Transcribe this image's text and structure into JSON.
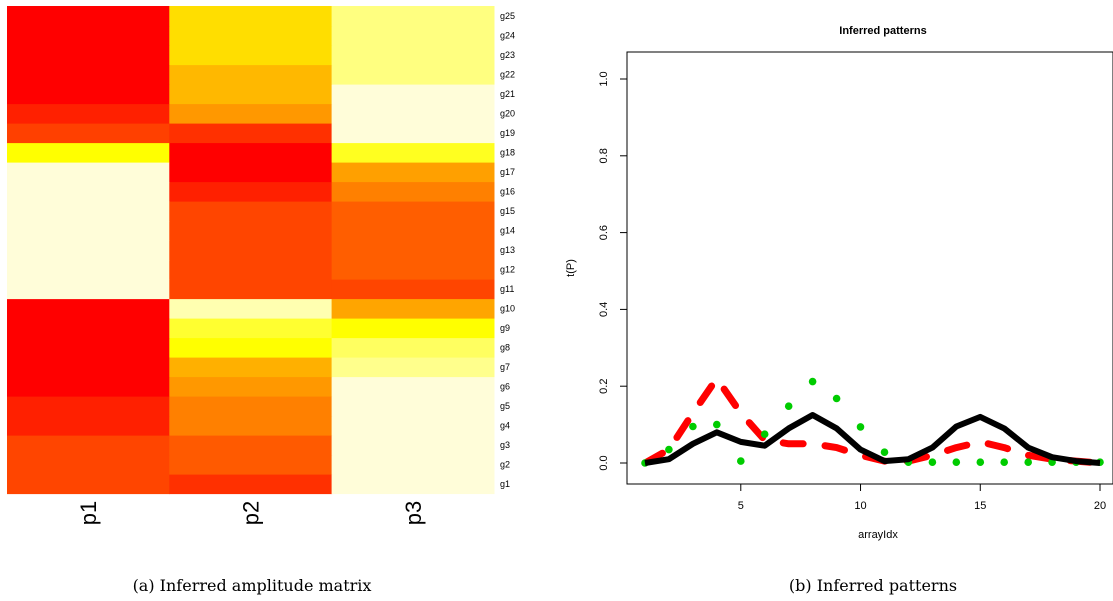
{
  "chart_data": [
    {
      "type": "heatmap",
      "caption": "(a) Inferred amplitude matrix",
      "columns": [
        "p1",
        "p2",
        "p3"
      ],
      "rows": [
        "g1",
        "g2",
        "g3",
        "g4",
        "g5",
        "g6",
        "g7",
        "g8",
        "g9",
        "g10",
        "g11",
        "g12",
        "g13",
        "g14",
        "g15",
        "g16",
        "g17",
        "g18",
        "g19",
        "g20",
        "g21",
        "g22",
        "g23",
        "g24",
        "g25"
      ],
      "colors": [
        [
          "#ff4500",
          "#ff3000",
          "#fffdd9"
        ],
        [
          "#ff4500",
          "#ff5a00",
          "#fffdd9"
        ],
        [
          "#ff4500",
          "#ff5a00",
          "#fffdd9"
        ],
        [
          "#ff2000",
          "#ff8000",
          "#fffdd9"
        ],
        [
          "#ff2000",
          "#ff8000",
          "#fffdd9"
        ],
        [
          "#ff0000",
          "#ff9800",
          "#fffdd9"
        ],
        [
          "#ff0000",
          "#ffb000",
          "#ffff8c"
        ],
        [
          "#ff0000",
          "#ffff00",
          "#ffff60"
        ],
        [
          "#ff0000",
          "#ffff30",
          "#ffff00"
        ],
        [
          "#ff0000",
          "#ffffb0",
          "#ffa500"
        ],
        [
          "#fffdd9",
          "#ff4500",
          "#ff4500"
        ],
        [
          "#fffdd9",
          "#ff4500",
          "#ff5e00"
        ],
        [
          "#fffdd9",
          "#ff4500",
          "#ff5e00"
        ],
        [
          "#fffdd9",
          "#ff4500",
          "#ff5e00"
        ],
        [
          "#fffdd9",
          "#ff4500",
          "#ff5e00"
        ],
        [
          "#fffdd9",
          "#ff2000",
          "#ff8000"
        ],
        [
          "#fffdd9",
          "#ff0000",
          "#ffa000"
        ],
        [
          "#ffff00",
          "#ff0000",
          "#ffff20"
        ],
        [
          "#ff4000",
          "#ff3000",
          "#fffdd9"
        ],
        [
          "#ff2000",
          "#ff9800",
          "#fffdd9"
        ],
        [
          "#ff0000",
          "#ffb800",
          "#fffdd9"
        ],
        [
          "#ff0000",
          "#ffb800",
          "#ffff80"
        ],
        [
          "#ff0000",
          "#ffde00",
          "#ffff80"
        ],
        [
          "#ff0000",
          "#ffde00",
          "#ffff80"
        ],
        [
          "#ff0000",
          "#ffde00",
          "#ffff80"
        ]
      ]
    },
    {
      "type": "line",
      "caption": "(b) Inferred patterns",
      "title": "Inferred patterns",
      "xlabel": "arrayIdx",
      "ylabel": "t(P)",
      "xlim": [
        1,
        20
      ],
      "ylim": [
        0,
        1
      ],
      "xticks": [
        "5",
        "10",
        "15",
        "20"
      ],
      "yticks": [
        "0.0",
        "0.2",
        "0.4",
        "0.6",
        "0.8",
        "1.0"
      ],
      "series": [
        {
          "style": "solid",
          "color": "#000000",
          "x": [
            1,
            2,
            3,
            4,
            5,
            6,
            7,
            8,
            9,
            10,
            11,
            12,
            13,
            14,
            15,
            16,
            17,
            18,
            19,
            20
          ],
          "y": [
            0,
            0.01,
            0.05,
            0.08,
            0.055,
            0.045,
            0.09,
            0.125,
            0.09,
            0.035,
            0.005,
            0.01,
            0.04,
            0.095,
            0.12,
            0.09,
            0.04,
            0.015,
            0.005,
            0
          ]
        },
        {
          "style": "dashed",
          "color": "#ff0000",
          "x": [
            1,
            2,
            3,
            4,
            5,
            6,
            7,
            8,
            9,
            10,
            11,
            12,
            13,
            14,
            15,
            16,
            17,
            18,
            19,
            20
          ],
          "y": [
            0,
            0.035,
            0.13,
            0.22,
            0.13,
            0.06,
            0.05,
            0.05,
            0.04,
            0.02,
            0.005,
            0.005,
            0.02,
            0.04,
            0.055,
            0.04,
            0.02,
            0.01,
            0.005,
            0
          ]
        },
        {
          "style": "dotted",
          "color": "#00cc00",
          "x": [
            1,
            2,
            3,
            4,
            5,
            6,
            7,
            8,
            9,
            10,
            11,
            12,
            13,
            14,
            15,
            16,
            17,
            18,
            19,
            20
          ],
          "y": [
            0,
            0.035,
            0.095,
            0.1,
            0.005,
            0.075,
            0.148,
            0.212,
            0.168,
            0.094,
            0.028,
            0.002,
            0.002,
            0.002,
            0.002,
            0.002,
            0.002,
            0.002,
            0.002,
            0.002
          ]
        }
      ]
    }
  ]
}
